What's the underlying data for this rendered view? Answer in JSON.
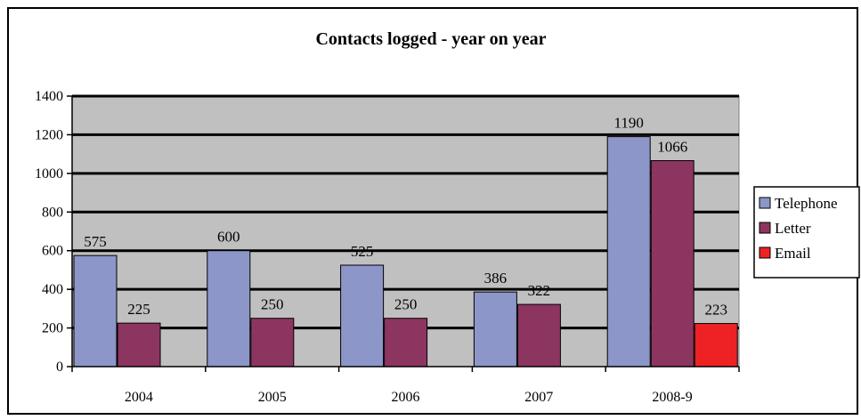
{
  "chart_data": {
    "type": "bar",
    "title": "Contacts logged - year on year",
    "categories": [
      "2004",
      "2005",
      "2006",
      "2007",
      "2008-9"
    ],
    "series": [
      {
        "name": "Telephone",
        "color": "#8c96c8",
        "values": [
          575,
          600,
          525,
          386,
          1190
        ]
      },
      {
        "name": "Letter",
        "color": "#8c3560",
        "values": [
          225,
          250,
          250,
          322,
          1066
        ]
      },
      {
        "name": "Email",
        "color": "#ee2224",
        "values": [
          null,
          null,
          null,
          null,
          223
        ]
      }
    ],
    "data_labels": [
      [
        "575",
        "600",
        "525",
        "386",
        "1190"
      ],
      [
        "225",
        "250",
        "250",
        "322",
        "1066"
      ],
      [
        "",
        "",
        "",
        "",
        "223"
      ]
    ],
    "ylim": [
      0,
      1400
    ],
    "yticks": [
      "0",
      "200",
      "400",
      "600",
      "800",
      "1000",
      "1200",
      "1400"
    ],
    "grid": true,
    "plot_background": "#c0c0c0",
    "legend_position": "right"
  }
}
